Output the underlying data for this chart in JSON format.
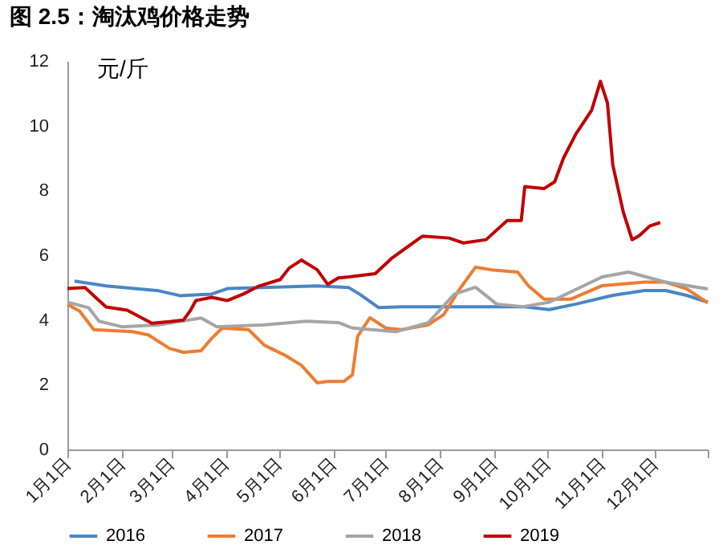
{
  "chart_data": {
    "type": "line",
    "title": "图 2.5：淘汰鸡价格走势",
    "ylabel": "元/斤",
    "xlim": [
      "--01-01",
      "--12-31"
    ],
    "xticks": [
      {
        "value": "--01-01",
        "label": "1月1日"
      },
      {
        "value": "--02-01",
        "label": "2月1日"
      },
      {
        "value": "--03-01",
        "label": "3月1日"
      },
      {
        "value": "--04-01",
        "label": "4月1日"
      },
      {
        "value": "--05-01",
        "label": "5月1日"
      },
      {
        "value": "--06-01",
        "label": "6月1日"
      },
      {
        "value": "--07-01",
        "label": "7月1日"
      },
      {
        "value": "--08-01",
        "label": "8月1日"
      },
      {
        "value": "--09-01",
        "label": "9月1日"
      },
      {
        "value": "--10-01",
        "label": "10月1日"
      },
      {
        "value": "--11-01",
        "label": "11月1日"
      },
      {
        "value": "--12-01",
        "label": "12月1日"
      },
      {
        "value": "--12-31",
        "label": null
      }
    ],
    "ylim": [
      0,
      12
    ],
    "yticks": [
      0,
      2,
      4,
      6,
      8,
      10,
      12
    ],
    "grid": false,
    "legend": "bottom",
    "marker": "none",
    "line_style": "solid",
    "series": [
      {
        "name": "2016",
        "color": "#4a86c6",
        "x": [
          "--01-05",
          "--01-23",
          "--02-22",
          "--03-06",
          "--03-24",
          "--04-02",
          "--05-23",
          "--06-10",
          "--06-16",
          "--06-27",
          "--07-10",
          "--08-09",
          "--09-17",
          "--10-02",
          "--10-17",
          "--11-07",
          "--11-25",
          "--12-07",
          "--12-19",
          "--12-31"
        ],
        "values": [
          5.2,
          5.05,
          4.9,
          4.75,
          4.8,
          4.97,
          5.05,
          5.0,
          4.8,
          4.38,
          4.41,
          4.41,
          4.41,
          4.32,
          4.49,
          4.76,
          4.91,
          4.91,
          4.76,
          4.55
        ]
      },
      {
        "name": "2017",
        "color": "#ed7d31",
        "x": [
          "--01-01",
          "--01-08",
          "--01-16",
          "--02-07",
          "--02-16",
          "--02-28",
          "--03-08",
          "--03-18",
          "--03-24",
          "--03-30",
          "--04-14",
          "--04-23",
          "--05-05",
          "--05-14",
          "--05-23",
          "--05-29",
          "--06-07",
          "--06-12",
          "--06-15",
          "--06-22",
          "--07-01",
          "--07-10",
          "--07-25",
          "--08-03",
          "--08-12",
          "--08-21",
          "--08-30",
          "--09-14",
          "--09-20",
          "--09-29",
          "--10-14",
          "--11-01",
          "--11-25",
          "--12-07",
          "--12-19",
          "--12-31"
        ],
        "values": [
          4.48,
          4.27,
          3.7,
          3.64,
          3.54,
          3.12,
          3.0,
          3.05,
          3.43,
          3.75,
          3.7,
          3.22,
          2.9,
          2.6,
          2.06,
          2.1,
          2.1,
          2.3,
          3.5,
          4.07,
          3.75,
          3.7,
          3.85,
          4.17,
          4.96,
          5.63,
          5.55,
          5.48,
          5.06,
          4.64,
          4.64,
          5.06,
          5.17,
          5.17,
          4.96,
          4.53
        ]
      },
      {
        "name": "2018",
        "color": "#a5a5a5",
        "x": [
          "--01-01",
          "--01-13",
          "--01-19",
          "--02-01",
          "--02-22",
          "--03-18",
          "--03-27",
          "--04-23",
          "--05-17",
          "--06-04",
          "--06-12",
          "--07-07",
          "--07-25",
          "--08-09",
          "--08-21",
          "--09-02",
          "--09-17",
          "--10-02",
          "--11-01",
          "--11-16",
          "--12-07",
          "--12-31"
        ],
        "values": [
          4.55,
          4.38,
          3.96,
          3.79,
          3.85,
          4.06,
          3.79,
          3.85,
          3.96,
          3.92,
          3.75,
          3.64,
          3.91,
          4.8,
          5.01,
          4.49,
          4.41,
          4.55,
          5.33,
          5.48,
          5.17,
          4.96
        ]
      },
      {
        "name": "2019",
        "color": "#c00000",
        "x": [
          "--01-01",
          "--01-11",
          "--01-17",
          "--01-23",
          "--02-04",
          "--02-18",
          "--02-28",
          "--03-08",
          "--03-12",
          "--03-15",
          "--03-24",
          "--04-02",
          "--04-11",
          "--04-20",
          "--05-02",
          "--05-07",
          "--05-14",
          "--05-23",
          "--05-29",
          "--06-04",
          "--06-10",
          "--06-25",
          "--07-04",
          "--07-19",
          "--07-22",
          "--08-06",
          "--08-14",
          "--08-27",
          "--09-08",
          "--09-16",
          "--09-18",
          "--09-29",
          "--10-05",
          "--10-10",
          "--10-17",
          "--10-26",
          "--10-31",
          "--11-04",
          "--11-07",
          "--11-13",
          "--11-18",
          "--11-22",
          "--11-28",
          "--12-04"
        ],
        "values": [
          4.97,
          5.0,
          4.7,
          4.4,
          4.3,
          3.9,
          3.95,
          4.0,
          4.3,
          4.6,
          4.7,
          4.6,
          4.8,
          5.05,
          5.25,
          5.6,
          5.85,
          5.55,
          5.1,
          5.3,
          5.33,
          5.43,
          5.89,
          6.48,
          6.59,
          6.53,
          6.38,
          6.48,
          7.07,
          7.07,
          8.12,
          8.06,
          8.27,
          9.0,
          9.74,
          10.48,
          11.37,
          10.7,
          8.8,
          7.33,
          6.48,
          6.6,
          6.9,
          7.01
        ]
      }
    ]
  }
}
